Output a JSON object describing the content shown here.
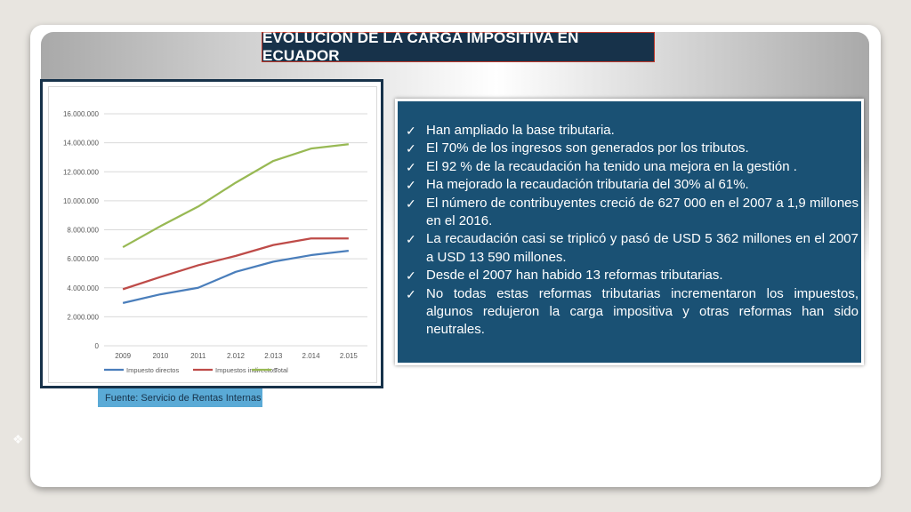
{
  "title": "EVOLUCION DE LA CARGA IMPOSITIVA EN ECUADOR",
  "source": "Fuente: Servicio de Rentas Internas",
  "bullets": [
    "Han ampliado la base tributaria.",
    "El 70% de los ingresos son generados por los  tributos.",
    "El 92 % de la recaudación ha tenido una mejora en la gestión .",
    "Ha mejorado la recaudación tributaria del 30% al 61%.",
    "El número de contribuyentes creció de 627 000 en el 2007 a 1,9 millones en el 2016.",
    "La recaudación casi se triplicó y pasó de USD 5 362 millones en el 2007 a USD 13 590 millones.",
    "Desde el 2007 han habido  13 reformas  tributarias.",
    "No todas estas reformas tributarias  incrementaron los impuestos, algunos redujeron la carga impositiva y otras reformas han sido neutrales."
  ],
  "icons": {
    "bullet": "check-icon",
    "corner": "diamond-cluster-icon"
  },
  "colors": {
    "title_bg": "#17324a",
    "panel_bg": "#1a5174",
    "source_bg": "#5aaad6"
  },
  "chart_data": {
    "type": "line",
    "categories": [
      "2009",
      "2010",
      "2011",
      "2.012",
      "2.013",
      "2.014",
      "2.015"
    ],
    "series": [
      {
        "name": "Impuesto directos",
        "color": "#4a7ebb",
        "values": [
          2950000,
          3550000,
          4000000,
          5100000,
          5800000,
          6250000,
          6550000
        ]
      },
      {
        "name": "Impuestos indirectos",
        "color": "#be4b48",
        "values": [
          3900000,
          4750000,
          5550000,
          6200000,
          6950000,
          7400000,
          7400000
        ]
      },
      {
        "name": "Total",
        "color": "#98b954",
        "values": [
          6800000,
          8250000,
          9600000,
          11250000,
          12750000,
          13600000,
          13900000
        ]
      }
    ],
    "yticks": [
      "0",
      "2.000.000",
      "4.000.000",
      "6.000.000",
      "8.000.000",
      "10.000.000",
      "12.000.000",
      "14.000.000",
      "16.000.000"
    ],
    "ylim": [
      0,
      16000000
    ],
    "grid": true,
    "legend": "bottom"
  }
}
